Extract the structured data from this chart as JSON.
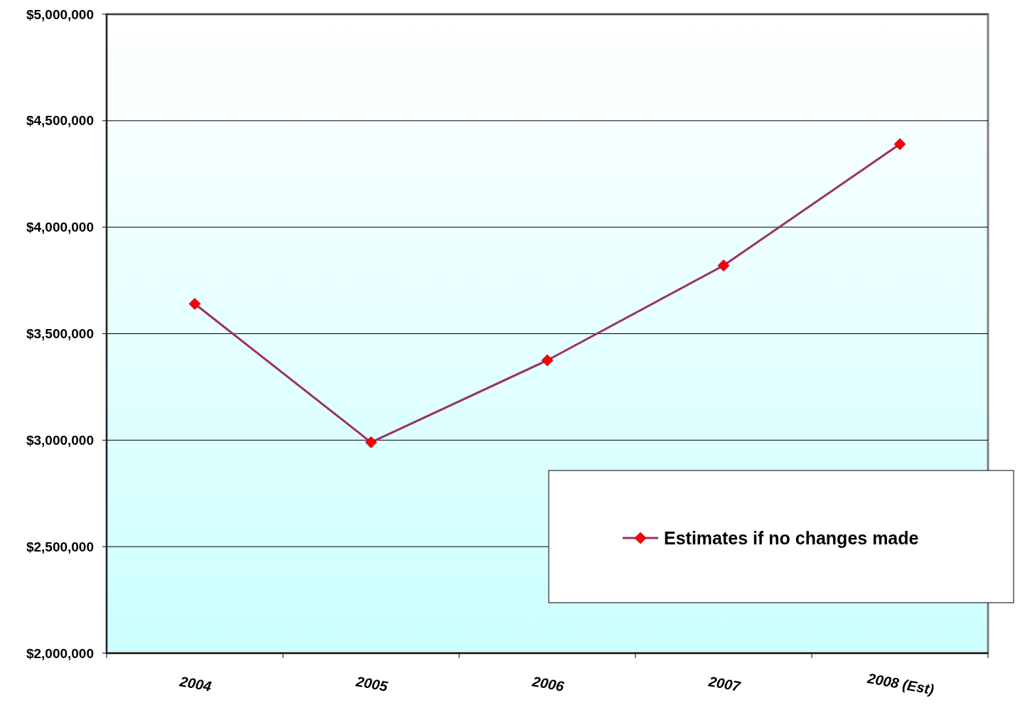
{
  "chart_data": {
    "type": "line",
    "categories": [
      "2004",
      "2005",
      "2006",
      "2007",
      "2008 (Est)"
    ],
    "series": [
      {
        "name": "Estimates if no changes made",
        "color": "#993366",
        "values": [
          3640000,
          2990000,
          3375000,
          3820000,
          4390000
        ]
      }
    ],
    "ylim": [
      2000000,
      5000000
    ],
    "yticks": [
      {
        "value": 2000000,
        "label": "$2,000,000"
      },
      {
        "value": 2500000,
        "label": "$2,500,000"
      },
      {
        "value": 3000000,
        "label": "$3,000,000"
      },
      {
        "value": 3500000,
        "label": "$3,500,000"
      },
      {
        "value": 4000000,
        "label": "$4,000,000"
      },
      {
        "value": 4500000,
        "label": "$4,500,000"
      },
      {
        "value": 5000000,
        "label": "$5,000,000"
      }
    ],
    "grid": "y",
    "legend": "bottom right",
    "marker": "diamond",
    "line_style": "solid"
  }
}
